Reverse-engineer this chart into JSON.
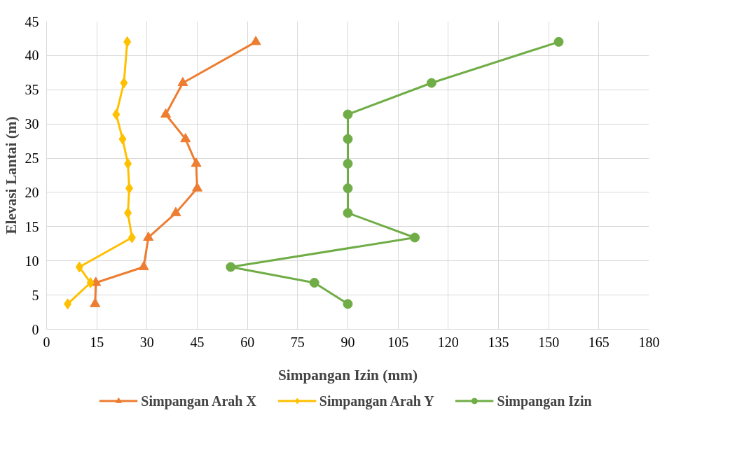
{
  "chart_data": {
    "type": "line",
    "xlabel": "Simpangan Izin (mm)",
    "ylabel": "Elevasi Lantai (m)",
    "xlim": [
      0,
      180
    ],
    "xticks": [
      0,
      15,
      30,
      45,
      60,
      75,
      90,
      105,
      120,
      135,
      150,
      165,
      180
    ],
    "ylim": [
      0,
      45
    ],
    "yticks": [
      0,
      5,
      10,
      15,
      20,
      25,
      30,
      35,
      40,
      45
    ],
    "grid": true,
    "legend": "bottom",
    "line_style": "solid",
    "series": [
      {
        "name": "Simpangan Arah X",
        "color": "#ed7d31",
        "marker": "triangle",
        "x": [
          14.5,
          14.7,
          29.0,
          30.4,
          38.6,
          45.0,
          44.7,
          41.5,
          35.6,
          40.7,
          62.5
        ],
        "values": [
          3.7,
          6.8,
          9.1,
          13.4,
          17,
          20.6,
          24.2,
          27.8,
          31.4,
          36,
          42
        ]
      },
      {
        "name": "Simpangan Arah Y",
        "color": "#ffc000",
        "marker": "diamond",
        "x": [
          6.3,
          13.1,
          9.8,
          25.5,
          24.3,
          24.7,
          24.3,
          22.7,
          20.8,
          23.1,
          24.1
        ],
        "values": [
          3.7,
          6.8,
          9.1,
          13.4,
          17,
          20.6,
          24.2,
          27.8,
          31.4,
          36,
          42
        ]
      },
      {
        "name": "Simpangan Izin",
        "color": "#70ad47",
        "marker": "circle",
        "x": [
          90,
          80,
          55,
          110,
          90,
          90,
          90,
          90,
          90,
          115,
          153
        ],
        "values": [
          3.7,
          6.8,
          9.1,
          13.4,
          17,
          20.6,
          24.2,
          27.8,
          31.4,
          36,
          42
        ]
      }
    ]
  }
}
